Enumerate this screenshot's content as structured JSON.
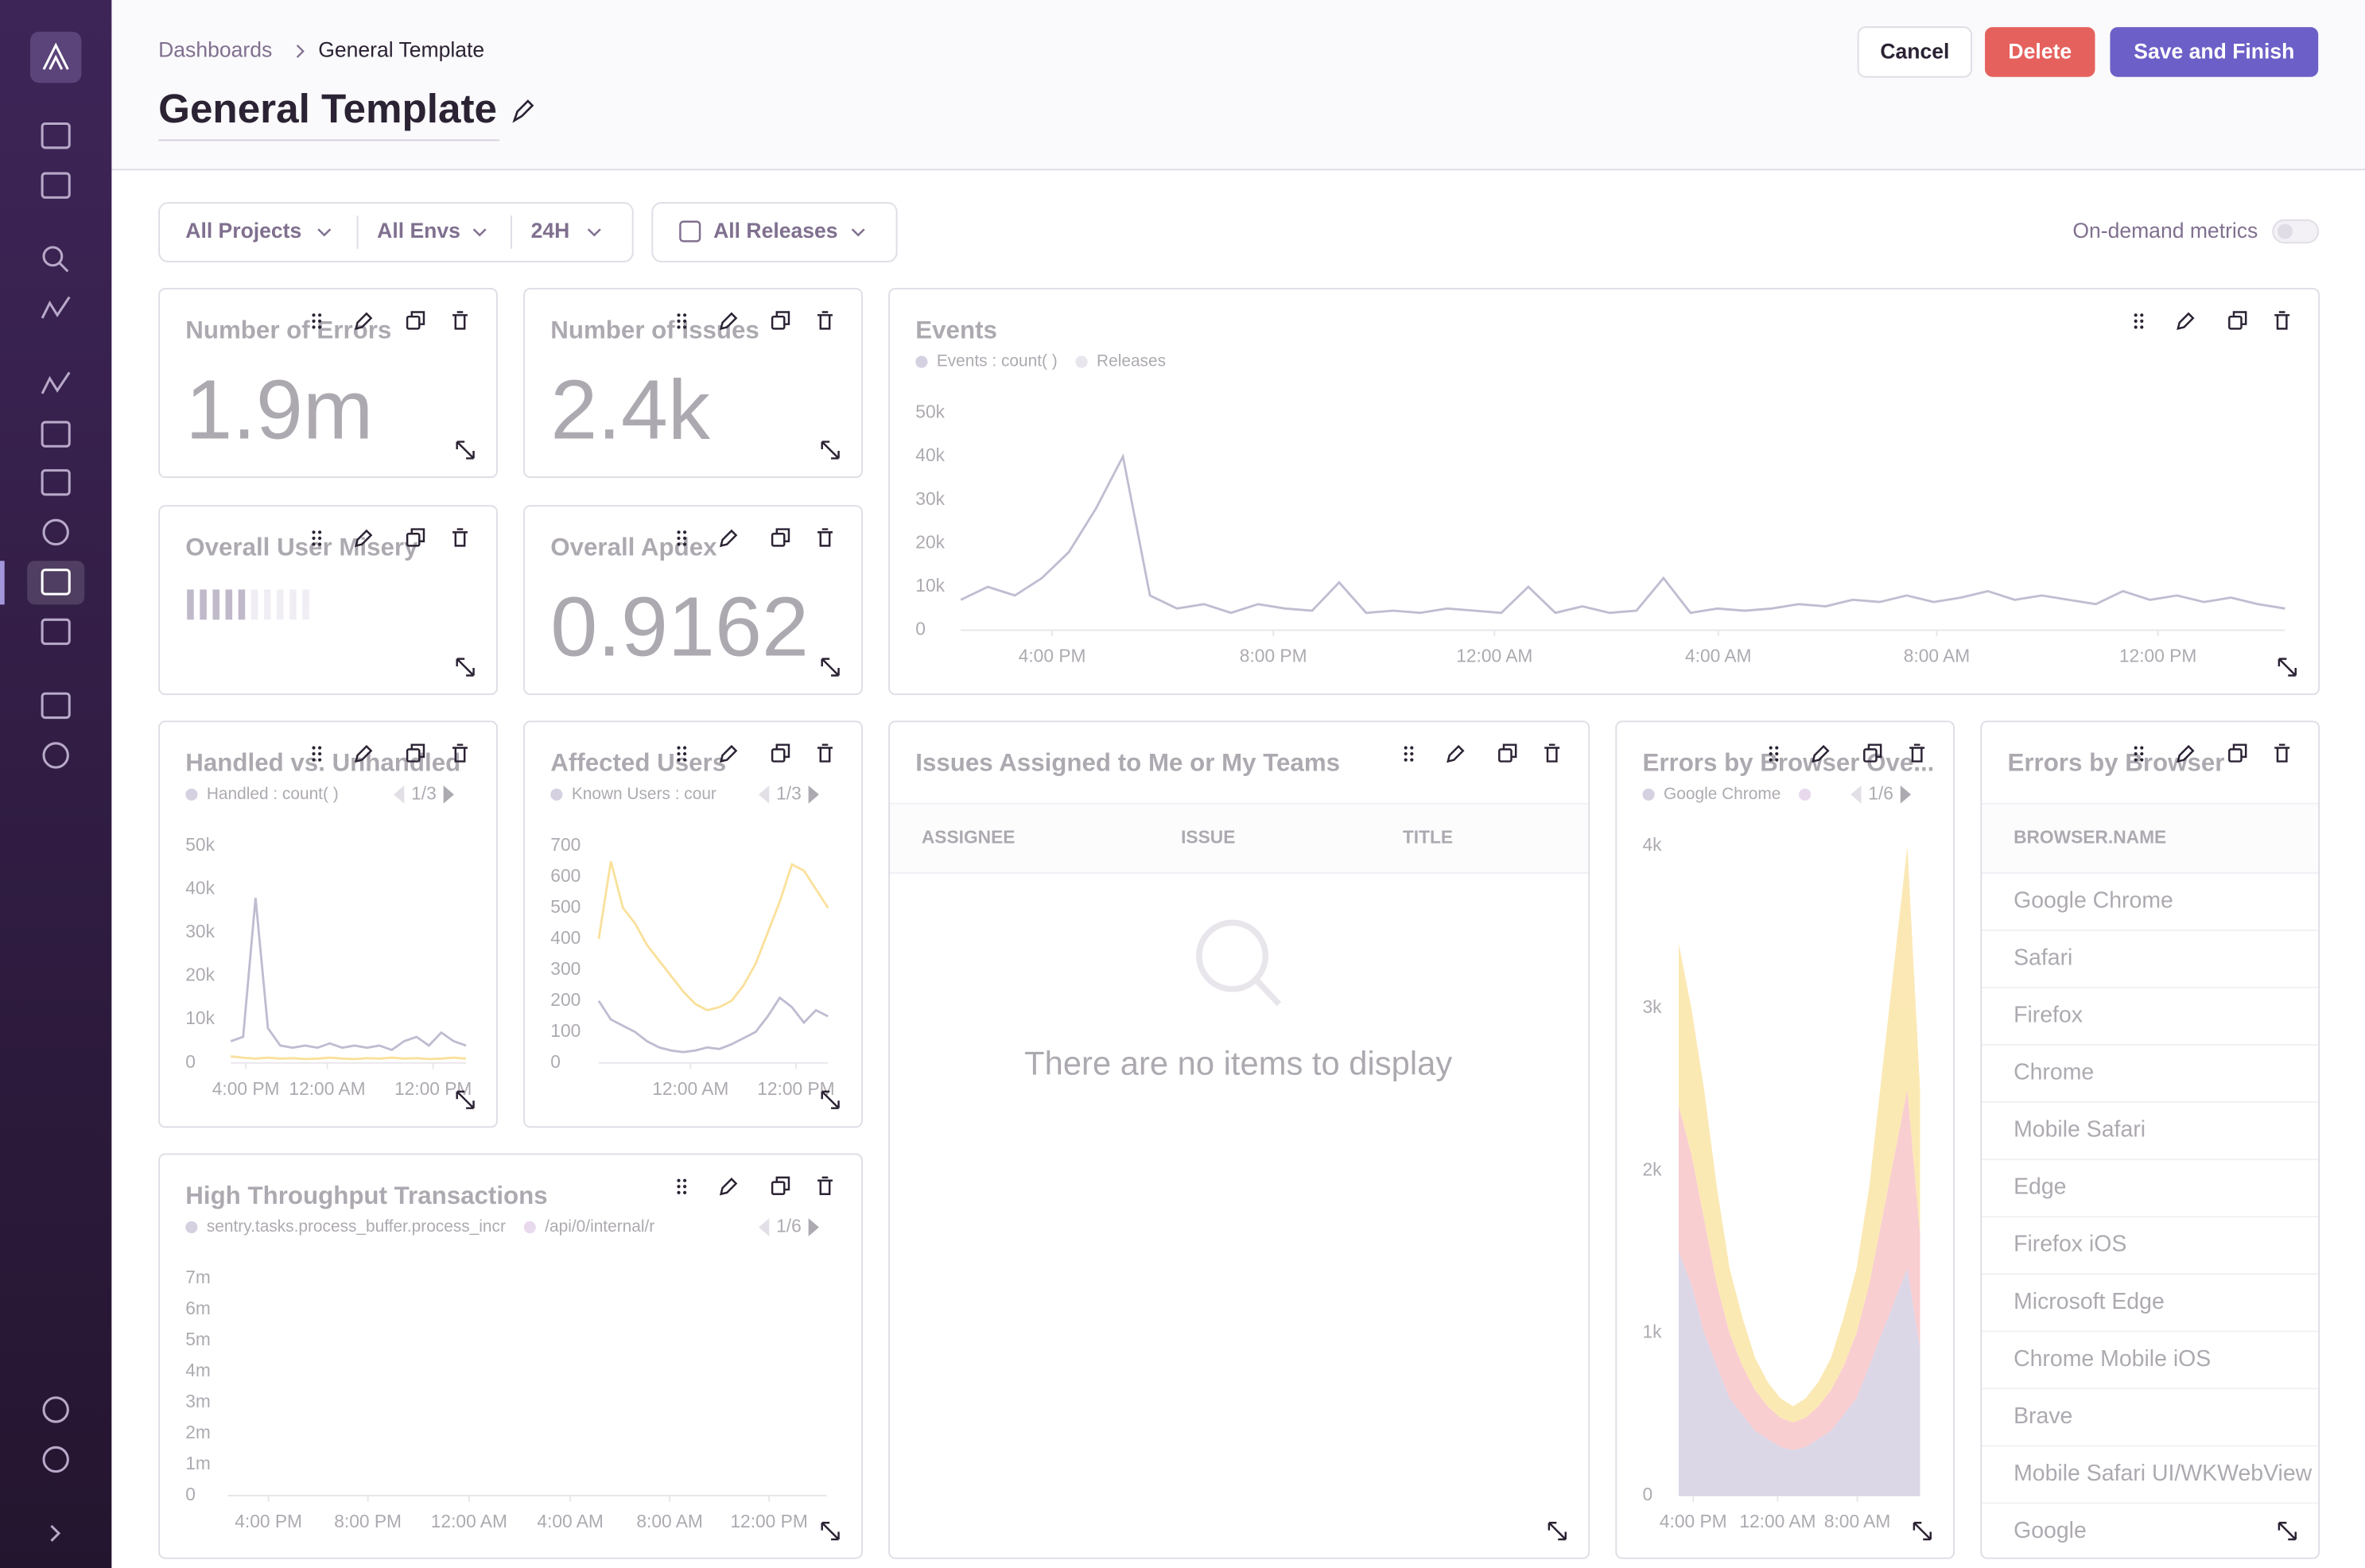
{
  "breadcrumb": {
    "parent": "Dashboards",
    "current": "General Template"
  },
  "title": "General Template",
  "actions": {
    "cancel": "Cancel",
    "delete": "Delete",
    "save": "Save and Finish"
  },
  "filters": {
    "projects": "All Projects",
    "environments": "All Envs",
    "period": "24H",
    "releases": "All Releases",
    "on_demand": "On-demand metrics"
  },
  "widgets": [
    {
      "kind": "big_number",
      "title": "Number of Errors",
      "value": "1.9m"
    },
    {
      "kind": "big_number",
      "title": "Number of Issues",
      "value": "2.4k"
    },
    {
      "kind": "misery",
      "title": "Overall User Misery"
    },
    {
      "kind": "big_number",
      "title": "Overall Apdex",
      "value": "0.9162"
    },
    {
      "kind": "chart",
      "title": "Events",
      "legend": [
        {
          "name": "Events : count( )",
          "color": "#9c92b8"
        },
        {
          "name": "Releases",
          "color": "#c9c2d6"
        }
      ],
      "chart": {
        "type": "line",
        "ylim": [
          0,
          50000
        ],
        "yticks": [
          0,
          {
            "value": 10000,
            "label": "10k"
          },
          {
            "value": 20000,
            "label": "20k"
          },
          {
            "value": 30000,
            "label": "30k"
          },
          {
            "value": 40000,
            "label": "40k"
          },
          {
            "value": 50000,
            "label": "50k"
          }
        ],
        "xticks": [
          "4:00 PM",
          "8:00 PM",
          "12:00 AM",
          "4:00 AM",
          "8:00 AM",
          "12:00 PM"
        ],
        "series": [
          {
            "color": "#6e5f94",
            "values": [
              7000,
              10000,
              8000,
              12000,
              18000,
              28000,
              40000,
              8000,
              5000,
              6000,
              4000,
              6000,
              5000,
              4500,
              11000,
              4000,
              4500,
              4000,
              5000,
              4500,
              4000,
              10000,
              4000,
              5500,
              4000,
              4500,
              12000,
              4000,
              5000,
              4500,
              5000,
              6000,
              5500,
              7000,
              6500,
              8000,
              6500,
              7500,
              9000,
              7000,
              8000,
              7000,
              6000,
              9000,
              7000,
              8000,
              6500,
              7500,
              6000,
              5000
            ]
          }
        ]
      }
    },
    {
      "kind": "chart",
      "title": "Handled vs. Unhandled",
      "pager": "1/3",
      "legend": [
        {
          "name": "Handled : count( )",
          "color": "#9c92b8"
        }
      ],
      "chart": {
        "type": "line",
        "ylim": [
          0,
          50000
        ],
        "yticks": [
          0,
          {
            "value": 10000,
            "label": "10k"
          },
          {
            "value": 20000,
            "label": "20k"
          },
          {
            "value": 30000,
            "label": "30k"
          },
          {
            "value": 40000,
            "label": "40k"
          },
          {
            "value": 50000,
            "label": "50k"
          }
        ],
        "xticks": [
          "4:00 PM",
          "12:00 AM",
          "12:00 PM"
        ],
        "series": [
          {
            "color": "#6e5f94",
            "values": [
              5000,
              6000,
              38000,
              8000,
              4000,
              3500,
              4000,
              3500,
              4500,
              3500,
              4000,
              3500,
              4000,
              3000,
              5000,
              6000,
              4000,
              7000,
              5000,
              4000
            ]
          },
          {
            "color": "#f2b712",
            "values": [
              1500,
              1200,
              1000,
              1200,
              1000,
              1100,
              900,
              1000,
              1200,
              1000,
              900,
              1100,
              1000,
              1200,
              1000,
              1100,
              900,
              1000,
              1200,
              1000
            ]
          }
        ]
      }
    },
    {
      "kind": "chart",
      "title": "Affected Users",
      "pager": "1/3",
      "legend": [
        {
          "name": "Known Users : cour",
          "color": "#9c92b8"
        }
      ],
      "chart": {
        "type": "line",
        "ylim": [
          0,
          700
        ],
        "yticks": [
          0,
          100,
          200,
          300,
          400,
          500,
          600,
          700
        ],
        "xticks": [
          "12:00 AM",
          "12:00 PM"
        ],
        "series": [
          {
            "color": "#f2b712",
            "values": [
              400,
              650,
              500,
              450,
              380,
              330,
              280,
              230,
              190,
              170,
              180,
              200,
              250,
              320,
              420,
              520,
              640,
              620,
              560,
              500
            ]
          },
          {
            "color": "#6e5f94",
            "values": [
              200,
              140,
              120,
              100,
              70,
              50,
              40,
              35,
              40,
              50,
              45,
              60,
              80,
              100,
              150,
              210,
              180,
              130,
              170,
              150
            ]
          }
        ]
      }
    },
    {
      "kind": "empty_table",
      "title": "Issues Assigned to Me or My Teams",
      "columns": [
        "ASSIGNEE",
        "ISSUE",
        "TITLE"
      ],
      "message": "There are no items to display"
    },
    {
      "kind": "chart",
      "title": "Errors by Browser Ove...",
      "pager": "1/6",
      "legend": [
        {
          "name": "Google Chrome",
          "color": "#9c92b8"
        }
      ],
      "chart": {
        "type": "area",
        "ylim": [
          0,
          4000
        ],
        "yticks": [
          0,
          {
            "value": 1000,
            "label": "1k"
          },
          {
            "value": 2000,
            "label": "2k"
          },
          {
            "value": 3000,
            "label": "3k"
          },
          {
            "value": 4000,
            "label": "4k"
          }
        ],
        "xticks": [
          "4:00 PM",
          "12:00 AM",
          "8:00 AM"
        ],
        "series": [
          {
            "color": "#8d7fb0",
            "values": [
              1500,
              1300,
              1000,
              800,
              600,
              500,
              400,
              350,
              300,
              280,
              300,
              350,
              400,
              500,
              600,
              800,
              1000,
              1200,
              1400,
              900
            ]
          },
          {
            "color": "#e9626e",
            "values": [
              900,
              800,
              700,
              500,
              400,
              300,
              250,
              200,
              180,
              170,
              180,
              200,
              250,
              300,
              400,
              500,
              700,
              900,
              1100,
              700
            ]
          },
          {
            "color": "#f2b712",
            "values": [
              1000,
              900,
              800,
              600,
              400,
              300,
              200,
              150,
              120,
              100,
              120,
              150,
              200,
              300,
              400,
              600,
              900,
              1200,
              1500,
              900
            ]
          }
        ]
      }
    },
    {
      "kind": "table",
      "title": "Errors by Browser",
      "header": "BROWSER.NAME",
      "rows": [
        "Google Chrome",
        "Safari",
        "Firefox",
        "Chrome",
        "Mobile Safari",
        "Edge",
        "Firefox iOS",
        "Microsoft Edge",
        "Chrome Mobile iOS",
        "Brave",
        "Mobile Safari UI/WKWebView",
        "Google"
      ]
    },
    {
      "kind": "chart",
      "title": "High Throughput Transactions",
      "pager": "1/6",
      "legend": [
        {
          "name": "sentry.tasks.process_buffer.process_incr",
          "color": "#9c92b8"
        },
        {
          "name": "/api/0/internal/r",
          "color": "#c9a6d6"
        }
      ],
      "chart": {
        "type": "area",
        "ylim": [
          0,
          7000000
        ],
        "yticks": [
          0,
          {
            "value": 1000000,
            "label": "1m"
          },
          {
            "value": 2000000,
            "label": "2m"
          },
          {
            "value": 3000000,
            "label": "3m"
          },
          {
            "value": 4000000,
            "label": "4m"
          },
          {
            "value": 5000000,
            "label": "5m"
          },
          {
            "value": 6000000,
            "label": "6m"
          },
          {
            "value": 7000000,
            "label": "7m"
          }
        ],
        "xticks": [
          "4:00 PM",
          "8:00 PM",
          "12:00 AM",
          "4:00 AM",
          "8:00 AM",
          "12:00 PM"
        ],
        "series": [
          {
            "color": "#8d7fb0",
            "values": [
              1800,
              2000,
              1900,
              2100,
              2000,
              2200,
              1900,
              2100,
              2000,
              2300,
              2000,
              2100,
              2200,
              2000,
              2100,
              2400,
              2000,
              2100,
              2200,
              2000,
              2300,
              2100,
              2000,
              2200,
              2100,
              2300,
              2000,
              2200,
              2100,
              2000
            ]
          },
          {
            "color": "#e9626e",
            "values": [
              800,
              900,
              850,
              950,
              900,
              1000,
              850,
              900,
              950,
              1100,
              900,
              950,
              1000,
              900,
              950,
              1200,
              900,
              950,
              1000,
              900,
              1050,
              950,
              900,
              1000,
              950,
              1100,
              900,
              1000,
              950,
              900
            ]
          },
          {
            "color": "#f2b712",
            "values": [
              1300,
              1600,
              1500,
              1700,
              1600,
              2000,
              1500,
              1800,
              1700,
              2300,
              1600,
              1900,
              2100,
              1700,
              1800,
              2600,
              1700,
              1900,
              2200,
              1800,
              2500,
              1900,
              1800,
              2300,
              1900,
              2600,
              1800,
              2400,
              2000,
              1900
            ]
          }
        ]
      }
    }
  ]
}
